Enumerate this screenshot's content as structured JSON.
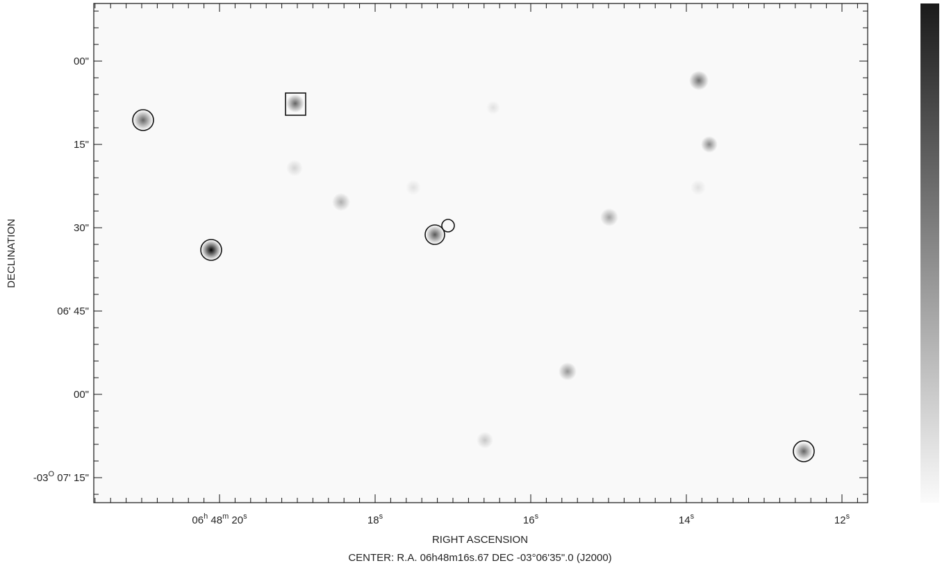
{
  "axes": {
    "x_label": "RIGHT ASCENSION",
    "y_label": "DECLINATION",
    "x_ticks": [
      [
        "06",
        "h",
        " 48",
        "m",
        " 20",
        "s"
      ],
      [
        "18",
        "s"
      ],
      [
        "16",
        "s"
      ],
      [
        "14",
        "s"
      ],
      [
        "12",
        "s"
      ]
    ],
    "y_ticks": [
      [
        "00\""
      ],
      [
        "15\""
      ],
      [
        "30\""
      ],
      [
        "06' 45\""
      ],
      [
        "00\""
      ],
      [
        "-03",
        "O",
        " 07' 15\""
      ]
    ]
  },
  "caption": "CENTER:  R.A. 06h48m16s.67  DEC  -03°06'35\".0  (J2000)"
}
